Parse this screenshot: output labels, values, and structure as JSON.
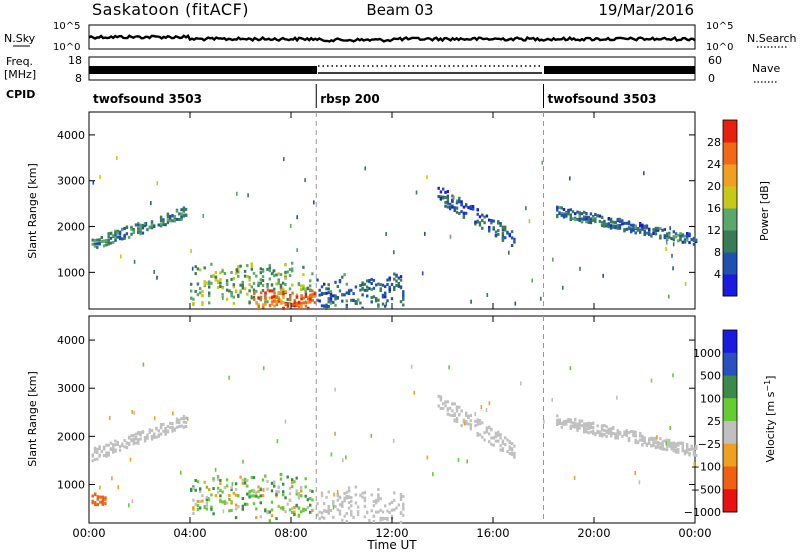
{
  "header": {
    "station": "Saskatoon (fitACF)",
    "beam": "Beam 03",
    "date": "19/Mar/2016"
  },
  "aux": {
    "nsky_label": "N.Sky",
    "nsky_ticks": [
      "10^5",
      "10^0"
    ],
    "nsearch_label": "N.Search",
    "nsearch_ticks": [
      "10^5",
      "10^0"
    ],
    "freq_label": "Freq.",
    "freq_unit": "[MHz]",
    "freq_ticks": [
      "18",
      "8"
    ],
    "nave_label": "Nave",
    "nave_ticks": [
      "60",
      "0"
    ],
    "cpid_label": "CPID"
  },
  "cpid_segments": [
    {
      "label": "twofsound 3503",
      "start_hour": 0,
      "end_hour": 9
    },
    {
      "label": "rbsp 200",
      "start_hour": 9,
      "end_hour": 18
    },
    {
      "label": "twofsound 3503",
      "start_hour": 18,
      "end_hour": 24
    }
  ],
  "colors": {
    "power": [
      "#1a1ae0",
      "#2050b0",
      "#3a7a55",
      "#5aa86a",
      "#c8c81a",
      "#f0a020",
      "#f06818",
      "#e82010"
    ],
    "velocity": [
      "#e81010",
      "#f06010",
      "#f0a020",
      "#c0c0c0",
      "#66cc33",
      "#3a8a4a",
      "#2a4fbf",
      "#1a1ae0"
    ],
    "ground_scatter": "#c0c0c0"
  },
  "chart_data": [
    {
      "type": "heatmap",
      "title": "Power",
      "xlabel": "",
      "ylabel": "Slant Range [km]",
      "xlim": [
        0,
        24
      ],
      "ylim": [
        200,
        4500
      ],
      "yticks": [
        1000,
        2000,
        3000,
        4000
      ],
      "colorbar": {
        "label": "Power [dB]",
        "ticks": [
          4,
          8,
          12,
          16,
          20,
          24,
          28
        ],
        "range": [
          0,
          32
        ]
      },
      "regions": [
        {
          "name": "early-arc",
          "t": [
            0.1,
            3.8
          ],
          "range_km": [
            1450,
            2450
          ],
          "value_db": 10
        },
        {
          "name": "midday-e",
          "t": [
            4.0,
            8.8
          ],
          "range_km": [
            300,
            1150
          ],
          "value_db": 14
        },
        {
          "name": "intense-near",
          "t": [
            6.5,
            8.9
          ],
          "range_km": [
            200,
            600
          ],
          "value_db": 26
        },
        {
          "name": "post-9-e",
          "t": [
            9.0,
            12.4
          ],
          "range_km": [
            200,
            900
          ],
          "value_db": 8
        },
        {
          "name": "afternoon-arc",
          "t": [
            13.8,
            16.8
          ],
          "range_km": [
            1500,
            2900
          ],
          "value_db": 7
        },
        {
          "name": "evening-arc",
          "t": [
            18.5,
            24
          ],
          "range_km": [
            1550,
            2450
          ],
          "value_db": 8
        }
      ]
    },
    {
      "type": "heatmap",
      "title": "Velocity",
      "xlabel": "Time UT",
      "ylabel": "Slant Range [km]",
      "xlim": [
        0,
        24
      ],
      "ylim": [
        200,
        4500
      ],
      "yticks": [
        1000,
        2000,
        3000,
        4000
      ],
      "xticks": [
        "00:00",
        "04:00",
        "08:00",
        "12:00",
        "16:00",
        "20:00",
        "00:00"
      ],
      "colorbar": {
        "label": "Velocity [m s^-1]",
        "ticks": [
          "1000",
          "500",
          "100",
          "25",
          "−25",
          "−100",
          "−500",
          "−1000"
        ]
      },
      "regions": [
        {
          "name": "early-arc",
          "t": [
            0.1,
            3.8
          ],
          "range_km": [
            1450,
            2450
          ],
          "velocity": 0
        },
        {
          "name": "morning-neg",
          "t": [
            0.1,
            0.6
          ],
          "range_km": [
            500,
            800
          ],
          "velocity": -300
        },
        {
          "name": "midday-e",
          "t": [
            4.0,
            8.8
          ],
          "range_km": [
            300,
            1150
          ],
          "velocity": 50
        },
        {
          "name": "post-9-e",
          "t": [
            9.0,
            12.4
          ],
          "range_km": [
            200,
            900
          ],
          "velocity": 0
        },
        {
          "name": "afternoon-arc",
          "t": [
            13.8,
            16.8
          ],
          "range_km": [
            1500,
            2900
          ],
          "velocity": 0
        },
        {
          "name": "evening-arc",
          "t": [
            18.5,
            24
          ],
          "range_km": [
            1550,
            2450
          ],
          "velocity": 0
        }
      ]
    }
  ]
}
